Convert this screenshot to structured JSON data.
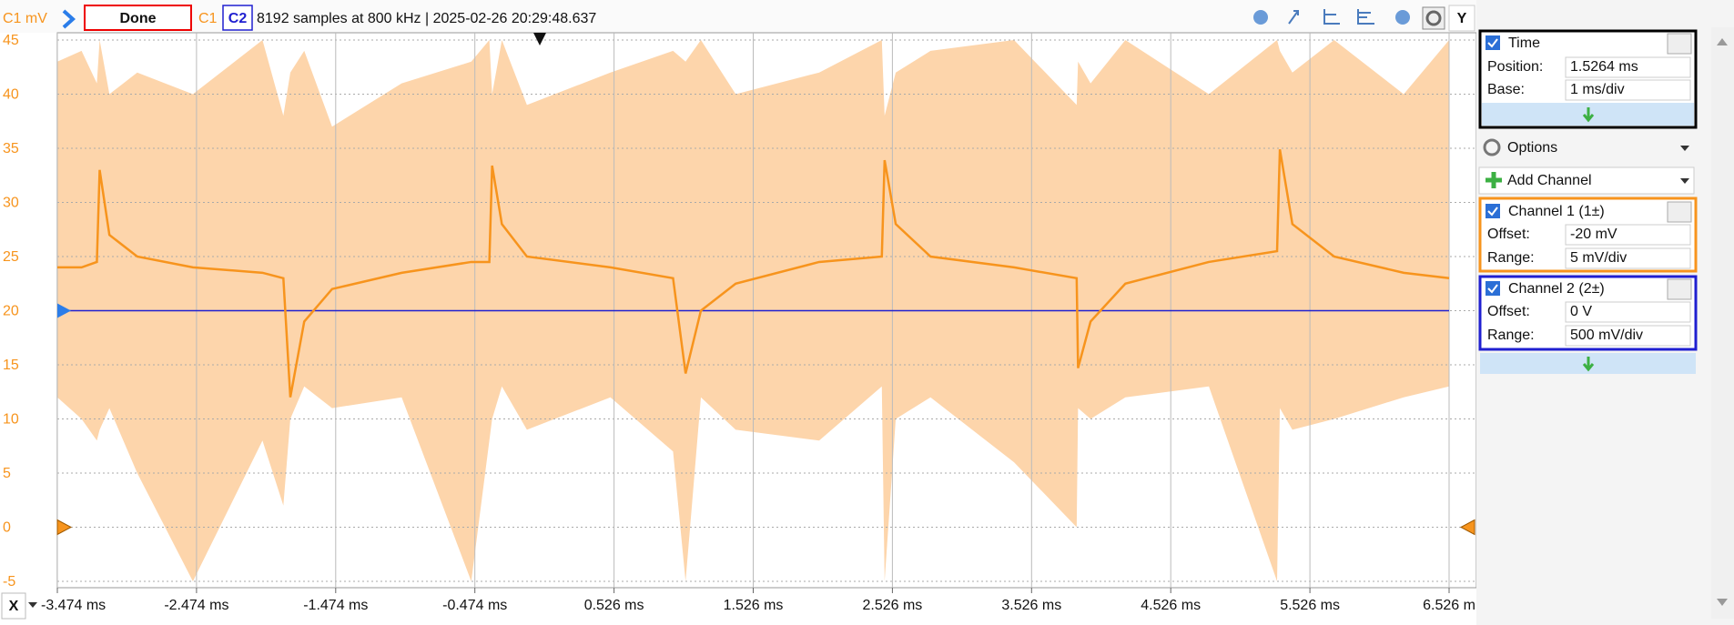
{
  "toolbar": {
    "y_axis_label": "C1 mV",
    "status": "Done",
    "info": "8192 samples at 800 kHz | 2025-02-26 20:29:48.637",
    "y_button": "Y",
    "x_button": "X"
  },
  "chart_data": {
    "type": "line",
    "x": [
      -3.474,
      -3.3,
      -3.19,
      -3.17,
      -3.1,
      -2.9,
      -2.5,
      -2.0,
      -1.85,
      -1.8,
      -1.7,
      -1.5,
      -1.0,
      -0.5,
      -0.37,
      -0.35,
      -0.28,
      -0.1,
      0.5,
      0.95,
      1.04,
      1.15,
      1.4,
      2.0,
      2.45,
      2.47,
      2.55,
      2.8,
      3.4,
      3.85,
      3.86,
      3.95,
      4.2,
      4.8,
      5.29,
      5.31,
      5.4,
      5.7,
      6.2,
      6.526
    ],
    "series": [
      {
        "name": "C1",
        "color": "#f7941d",
        "values": [
          24,
          24,
          24.5,
          33,
          27,
          25,
          24,
          23.5,
          23,
          12,
          19,
          22,
          23.5,
          24.5,
          24.5,
          33.4,
          28,
          25,
          24,
          23,
          14.2,
          20,
          22.5,
          24.5,
          25,
          33.9,
          28,
          25,
          24,
          23,
          14.7,
          19,
          22.5,
          24.5,
          25.5,
          34.9,
          28,
          25,
          23.5,
          23
        ]
      },
      {
        "name": "C2",
        "color": "#1f1fd0",
        "values": [
          20,
          20,
          20,
          20,
          20,
          20,
          20,
          20,
          20,
          20,
          20,
          20,
          20,
          20,
          20,
          20,
          20,
          20,
          20,
          20,
          20,
          20,
          20,
          20,
          20,
          20,
          20,
          20,
          20,
          20,
          20,
          20,
          20,
          20,
          20,
          20,
          20,
          20,
          20,
          20
        ]
      }
    ],
    "envelope": {
      "color": "#fdd5ab",
      "upper": [
        43,
        44,
        41,
        45,
        40,
        42,
        40,
        45,
        38,
        42,
        44,
        37,
        41,
        43,
        45,
        40,
        45,
        39,
        42,
        44,
        43,
        45,
        40,
        42,
        45,
        38,
        42,
        44,
        45,
        39,
        43,
        41,
        45,
        40,
        45,
        44,
        42,
        45,
        40,
        45
      ],
      "lower": [
        12,
        10,
        8,
        9,
        11,
        5,
        -5,
        8,
        2,
        10,
        13,
        11,
        12,
        -5,
        8,
        10,
        13,
        9,
        12,
        7,
        -5,
        12,
        9,
        8,
        13,
        -5,
        10,
        12,
        6,
        0,
        11,
        10,
        12,
        13,
        -5,
        11,
        9,
        10,
        12,
        13
      ]
    },
    "xlim": [
      -3.474,
      6.526
    ],
    "xticks": [
      {
        "value": -3.474,
        "label": "-3.474 ms"
      },
      {
        "value": -2.474,
        "label": "-2.474 ms"
      },
      {
        "value": -1.474,
        "label": "-1.474 ms"
      },
      {
        "value": -0.474,
        "label": "-0.474 ms"
      },
      {
        "value": 0.526,
        "label": "0.526 ms"
      },
      {
        "value": 1.526,
        "label": "1.526 ms"
      },
      {
        "value": 2.526,
        "label": "2.526 ms"
      },
      {
        "value": 3.526,
        "label": "3.526 ms"
      },
      {
        "value": 4.526,
        "label": "4.526 ms"
      },
      {
        "value": 5.526,
        "label": "5.526 ms"
      },
      {
        "value": 6.526,
        "label": "6.526 m"
      }
    ],
    "ylim": [
      -5,
      45
    ],
    "yticks": [
      45,
      40,
      35,
      30,
      25,
      20,
      15,
      10,
      5,
      0,
      -5
    ],
    "grid": true
  },
  "panel": {
    "time": {
      "title": "Time",
      "position_label": "Position:",
      "position": "1.5264 ms",
      "base_label": "Base:",
      "base": "1 ms/div"
    },
    "options": "Options",
    "add_channel": "Add Channel",
    "channel1": {
      "title": "Channel 1 (1±)",
      "offset_label": "Offset:",
      "offset": "-20 mV",
      "range_label": "Range:",
      "range": "5 mV/div"
    },
    "channel2": {
      "title": "Channel 2 (2±)",
      "offset_label": "Offset:",
      "offset": "0 V",
      "range_label": "Range:",
      "range": "500 mV/div"
    }
  }
}
